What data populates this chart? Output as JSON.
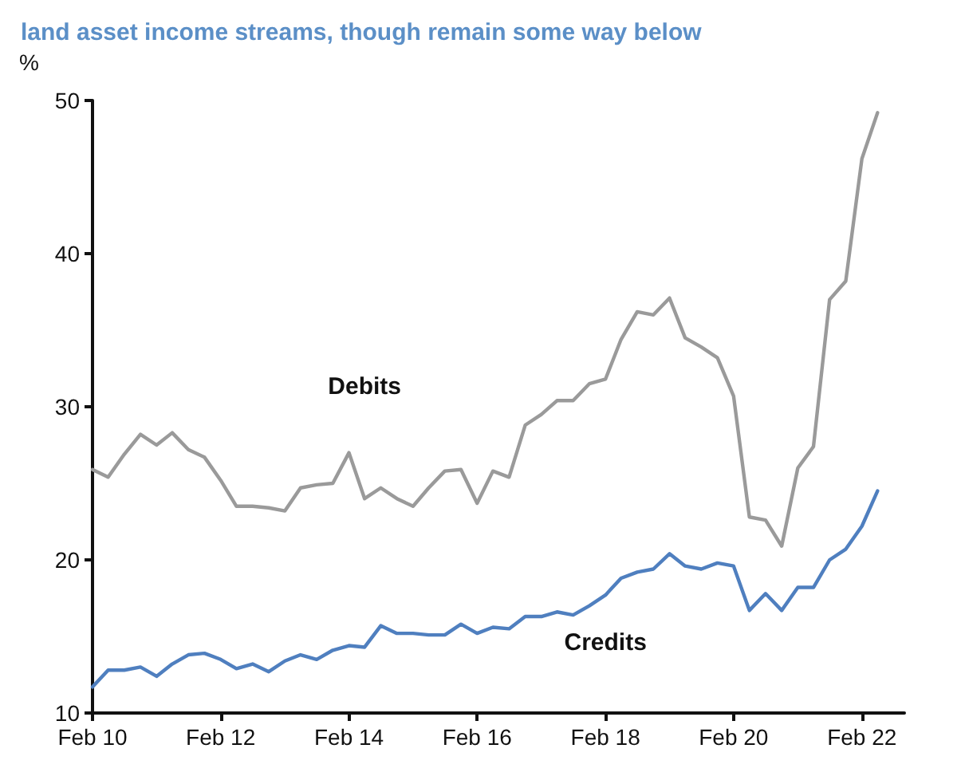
{
  "chart_data": {
    "type": "line",
    "title": "land asset income streams, though remain some way below",
    "ylabel": "%",
    "x": [
      "2010-02",
      "2010-05",
      "2010-08",
      "2010-11",
      "2011-02",
      "2011-05",
      "2011-08",
      "2011-11",
      "2012-02",
      "2012-05",
      "2012-08",
      "2012-11",
      "2013-02",
      "2013-05",
      "2013-08",
      "2013-11",
      "2014-02",
      "2014-05",
      "2014-08",
      "2014-11",
      "2015-02",
      "2015-05",
      "2015-08",
      "2015-11",
      "2016-02",
      "2016-05",
      "2016-08",
      "2016-11",
      "2017-02",
      "2017-05",
      "2017-08",
      "2017-11",
      "2018-02",
      "2018-05",
      "2018-08",
      "2018-11",
      "2019-02",
      "2019-05",
      "2019-08",
      "2019-11",
      "2020-02",
      "2020-05",
      "2020-08",
      "2020-11",
      "2021-02",
      "2021-05",
      "2021-08",
      "2021-11",
      "2022-02",
      "2022-05"
    ],
    "series": [
      {
        "name": "Debits",
        "color": "#9a9a9a",
        "values": [
          25.9,
          25.4,
          26.9,
          28.2,
          27.5,
          28.3,
          27.2,
          26.7,
          25.2,
          23.5,
          23.5,
          23.4,
          23.2,
          24.7,
          24.9,
          25.0,
          27.0,
          24.0,
          24.7,
          24.0,
          23.5,
          24.7,
          25.8,
          25.9,
          23.7,
          25.8,
          25.4,
          28.8,
          29.5,
          30.4,
          30.4,
          31.5,
          31.8,
          34.4,
          36.2,
          36.0,
          37.1,
          34.5,
          33.9,
          33.2,
          30.7,
          22.8,
          22.6,
          20.9,
          26.0,
          27.4,
          37.0,
          38.2,
          46.2,
          49.2
        ]
      },
      {
        "name": "Credits",
        "color": "#4f7fbf",
        "values": [
          11.7,
          12.8,
          12.8,
          13.0,
          12.4,
          13.2,
          13.8,
          13.9,
          13.5,
          12.9,
          13.2,
          12.7,
          13.4,
          13.8,
          13.5,
          14.1,
          14.4,
          14.3,
          15.7,
          15.2,
          15.2,
          15.1,
          15.1,
          15.8,
          15.2,
          15.6,
          15.5,
          16.3,
          16.3,
          16.6,
          16.4,
          17.0,
          17.7,
          18.8,
          19.2,
          19.4,
          20.4,
          19.6,
          19.4,
          19.8,
          19.6,
          16.7,
          17.8,
          16.7,
          18.2,
          18.2,
          20.0,
          20.7,
          22.2,
          24.5
        ]
      }
    ],
    "xlim": [
      "2010-02",
      "2022-10"
    ],
    "xticks": [
      {
        "value": "2010-02",
        "label": "Feb 10"
      },
      {
        "value": "2012-02",
        "label": "Feb 12"
      },
      {
        "value": "2014-02",
        "label": "Feb 14"
      },
      {
        "value": "2016-02",
        "label": "Feb 16"
      },
      {
        "value": "2018-02",
        "label": "Feb 18"
      },
      {
        "value": "2020-02",
        "label": "Feb 20"
      },
      {
        "value": "2022-02",
        "label": "Feb 22"
      }
    ],
    "ylim": [
      10,
      50
    ],
    "yticks": [
      10,
      20,
      30,
      40,
      50
    ],
    "grid": false,
    "legend": false,
    "marker": "none",
    "line_style": "solid"
  }
}
